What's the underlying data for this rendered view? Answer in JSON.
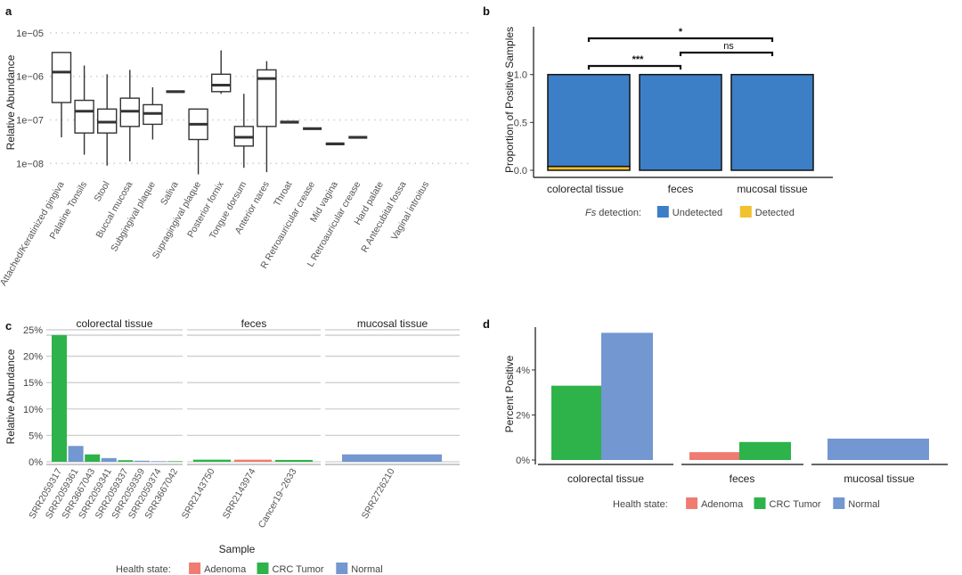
{
  "colors": {
    "undetected": "#3d7fc6",
    "detected": "#f2c12e",
    "adenoma": "#ef7b72",
    "crc_tumor": "#2db34a",
    "normal": "#7397d0",
    "grid": "#cfcfcf",
    "axis": "#333333",
    "text": "#444444"
  },
  "chart_data": [
    {
      "panel": "a",
      "type": "box",
      "title": "",
      "xlabel": "",
      "ylabel": "Relative Abundance",
      "yscale": "log10",
      "ylim_log10": [
        -8.3,
        -4.9
      ],
      "yticks": [
        {
          "label": "1e−05",
          "log10": -5
        },
        {
          "label": "1e−06",
          "log10": -6
        },
        {
          "label": "1e−07",
          "log10": -7
        },
        {
          "label": "1e−08",
          "log10": -8
        }
      ],
      "grid": "horizontal-dotted",
      "boxes": [
        {
          "label": "Attached/Keratinized gingiva",
          "min": -7.4,
          "q1": -6.6,
          "median": -5.9,
          "q3": -5.45,
          "max": null
        },
        {
          "label": "Palatine Tonsils",
          "min": -7.8,
          "q1": -7.3,
          "median": -6.8,
          "q3": -6.55,
          "max": -5.75
        },
        {
          "label": "Stool",
          "min": -8.05,
          "q1": -7.3,
          "median": -7.05,
          "q3": -6.75,
          "max": -5.95
        },
        {
          "label": "Buccal mucosa",
          "min": -7.95,
          "q1": -7.15,
          "median": -6.8,
          "q3": -6.5,
          "max": -5.85
        },
        {
          "label": "Subgingival plaque",
          "min": -7.45,
          "q1": -7.1,
          "median": -6.85,
          "q3": -6.65,
          "max": -6.25
        },
        {
          "label": "Saliva",
          "min": null,
          "q1": null,
          "median": -6.35,
          "q3": null,
          "max": null
        },
        {
          "label": "Supragingival plaque",
          "min": -8.25,
          "q1": -7.45,
          "median": -7.1,
          "q3": -6.75,
          "max": null
        },
        {
          "label": "Posterior fornix",
          "min": -6.4,
          "q1": -6.35,
          "median": -6.2,
          "q3": -5.95,
          "max": -5.4
        },
        {
          "label": "Tongue dorsum",
          "min": -8.1,
          "q1": -7.6,
          "median": -7.4,
          "q3": -7.15,
          "max": -6.4
        },
        {
          "label": "Anterior nares",
          "min": -8.2,
          "q1": -7.15,
          "median": -6.05,
          "q3": -5.85,
          "max": -5.65
        },
        {
          "label": "Throat",
          "min": null,
          "q1": null,
          "median": -7.05,
          "q3": null,
          "max": null
        },
        {
          "label": "R Retroauricular crease",
          "min": null,
          "q1": null,
          "median": -7.2,
          "q3": null,
          "max": null
        },
        {
          "label": "Mid vagina",
          "min": null,
          "q1": null,
          "median": -7.55,
          "q3": null,
          "max": null
        },
        {
          "label": "L Retroauricular crease",
          "min": null,
          "q1": null,
          "median": -7.4,
          "q3": null,
          "max": null
        },
        {
          "label": "Hard palate",
          "min": null,
          "q1": null,
          "median": null,
          "q3": null,
          "max": null
        },
        {
          "label": "R Antecubital fossa",
          "min": null,
          "q1": null,
          "median": null,
          "q3": null,
          "max": null
        },
        {
          "label": "Vaginal introitus",
          "min": null,
          "q1": null,
          "median": null,
          "q3": null,
          "max": null
        }
      ]
    },
    {
      "panel": "b",
      "type": "stacked-bar",
      "title": "",
      "xlabel": "",
      "ylabel": "Proportion of Positive Samples",
      "ylim": [
        0,
        1.5
      ],
      "yticks": [
        "0.0",
        "0.5",
        "1.0"
      ],
      "categories": [
        "colorectal tissue",
        "feces",
        "mucosal tissue"
      ],
      "series": [
        {
          "name": "Detected",
          "values": [
            0.04,
            0,
            0
          ]
        },
        {
          "name": "Undetected",
          "values": [
            0.96,
            1.0,
            1.0
          ]
        }
      ],
      "legend_title_italic": "Fs",
      "legend_title_rest": " detection:",
      "legend": [
        "Undetected",
        "Detected"
      ],
      "legend_position": "bottom",
      "significance": [
        {
          "from": 0,
          "to": 2,
          "label": "*"
        },
        {
          "from": 1,
          "to": 2,
          "label": "ns"
        },
        {
          "from": 0,
          "to": 1,
          "label": "***"
        }
      ]
    },
    {
      "panel": "c",
      "type": "bar",
      "title": "",
      "xlabel": "Sample",
      "ylabel": "Relative Abundance",
      "ylim": [
        0,
        25.5
      ],
      "yticks": [
        "0%",
        "5%",
        "10%",
        "15%",
        "20%",
        "25%"
      ],
      "facets": [
        {
          "name": "colorectal tissue",
          "samples": [
            "SRR2059317",
            "SRR2059361",
            "SRR3667043",
            "SRR2059341",
            "SRR2059337",
            "SRR2059359",
            "SRR2059374",
            "SRR3667042"
          ],
          "values": [
            24.0,
            3.0,
            1.4,
            0.7,
            0.3,
            0.2,
            0.1,
            0.1
          ],
          "states": [
            "CRC Tumor",
            "Normal",
            "CRC Tumor",
            "Normal",
            "CRC Tumor",
            "Normal",
            "Normal",
            "CRC Tumor"
          ]
        },
        {
          "name": "feces",
          "samples": [
            "SRR2143750",
            "SRR2143974",
            "Cancer19~2633"
          ],
          "values": [
            0.4,
            0.4,
            0.35
          ],
          "states": [
            "CRC Tumor",
            "Adenoma",
            "CRC Tumor"
          ]
        },
        {
          "name": "mucosal tissue",
          "samples": [
            "SRR2726210"
          ],
          "values": [
            1.4
          ],
          "states": [
            "Normal"
          ]
        }
      ],
      "legend_title": "Health state:",
      "legend": [
        "Adenoma",
        "CRC Tumor",
        "Normal"
      ],
      "legend_position": "bottom"
    },
    {
      "panel": "d",
      "type": "bar",
      "title": "",
      "xlabel": "",
      "ylabel": "Percent Positive",
      "ylim": [
        0,
        5.9
      ],
      "yticks": [
        "0%",
        "2%",
        "4%"
      ],
      "categories": [
        "colorectal tissue",
        "feces",
        "mucosal tissue"
      ],
      "bars": [
        {
          "category": "colorectal tissue",
          "state": "CRC Tumor",
          "value": 3.3
        },
        {
          "category": "colorectal tissue",
          "state": "Normal",
          "value": 5.65
        },
        {
          "category": "feces",
          "state": "Adenoma",
          "value": 0.35
        },
        {
          "category": "feces",
          "state": "CRC Tumor",
          "value": 0.8
        },
        {
          "category": "mucosal tissue",
          "state": "Normal",
          "value": 0.95
        }
      ],
      "legend_title": "Health state:",
      "legend": [
        "Adenoma",
        "CRC Tumor",
        "Normal"
      ],
      "legend_position": "bottom"
    }
  ],
  "panel_labels": [
    "a",
    "b",
    "c",
    "d"
  ]
}
